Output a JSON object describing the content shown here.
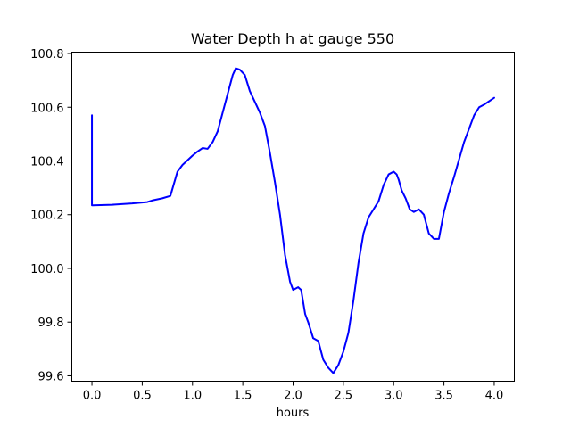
{
  "chart_data": {
    "type": "line",
    "title": "Water Depth h at gauge 550",
    "xlabel": "hours",
    "ylabel": "",
    "xlim": [
      -0.2,
      4.2
    ],
    "ylim": [
      99.58,
      100.805
    ],
    "xticks": [
      0.0,
      0.5,
      1.0,
      1.5,
      2.0,
      2.5,
      3.0,
      3.5,
      4.0
    ],
    "xtick_labels": [
      "0.0",
      "0.5",
      "1.0",
      "1.5",
      "2.0",
      "2.5",
      "3.0",
      "3.5",
      "4.0"
    ],
    "yticks": [
      99.6,
      99.8,
      100.0,
      100.2,
      100.4,
      100.6,
      100.8
    ],
    "ytick_labels": [
      "99.6",
      "99.8",
      "100.0",
      "100.2",
      "100.4",
      "100.6",
      "100.8"
    ],
    "grid": false,
    "series": [
      {
        "color": "#0000ff",
        "x": [
          0.0,
          0.0,
          0.01,
          0.2,
          0.4,
          0.55,
          0.6,
          0.7,
          0.78,
          0.85,
          0.9,
          1.0,
          1.05,
          1.1,
          1.15,
          1.2,
          1.25,
          1.3,
          1.35,
          1.4,
          1.43,
          1.47,
          1.52,
          1.57,
          1.62,
          1.67,
          1.72,
          1.77,
          1.82,
          1.87,
          1.92,
          1.97,
          2.0,
          2.05,
          2.08,
          2.12,
          2.15,
          2.2,
          2.25,
          2.3,
          2.35,
          2.4,
          2.45,
          2.48,
          2.5,
          2.55,
          2.6,
          2.65,
          2.7,
          2.75,
          2.8,
          2.85,
          2.9,
          2.95,
          3.0,
          3.03,
          3.05,
          3.08,
          3.12,
          3.16,
          3.2,
          3.25,
          3.3,
          3.35,
          3.4,
          3.45,
          3.5,
          3.55,
          3.6,
          3.7,
          3.8,
          3.85,
          3.9,
          4.0
        ],
        "y": [
          100.57,
          100.235,
          100.235,
          100.237,
          100.242,
          100.247,
          100.253,
          100.261,
          100.27,
          100.36,
          100.385,
          100.42,
          100.435,
          100.448,
          100.445,
          100.47,
          100.51,
          100.58,
          100.65,
          100.72,
          100.745,
          100.74,
          100.72,
          100.66,
          100.62,
          100.58,
          100.53,
          100.43,
          100.32,
          100.2,
          100.05,
          99.95,
          99.92,
          99.93,
          99.92,
          99.83,
          99.8,
          99.74,
          99.73,
          99.66,
          99.63,
          99.61,
          99.64,
          99.67,
          99.69,
          99.76,
          99.88,
          100.02,
          100.13,
          100.19,
          100.22,
          100.25,
          100.31,
          100.35,
          100.36,
          100.35,
          100.33,
          100.29,
          100.26,
          100.22,
          100.21,
          100.22,
          100.2,
          100.13,
          100.11,
          100.11,
          100.21,
          100.28,
          100.34,
          100.47,
          100.57,
          100.6,
          100.61,
          100.635
        ]
      }
    ]
  }
}
